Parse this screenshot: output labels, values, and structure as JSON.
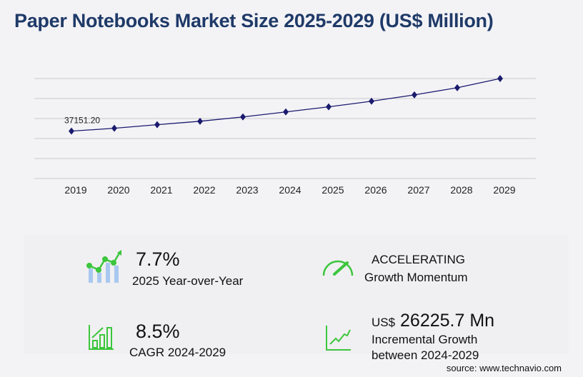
{
  "title": "Paper Notebooks Market Size 2025-2029 (US$ Million)",
  "chart_data": {
    "type": "line",
    "title": "Paper Notebooks Market Size 2025-2029 (US$ Million)",
    "categories": [
      "2019",
      "2020",
      "2021",
      "2022",
      "2023",
      "2024",
      "2025",
      "2026",
      "2027",
      "2028",
      "2029"
    ],
    "series": [
      {
        "values": [
          37151.2,
          39400,
          42200,
          44900,
          48300,
          52200,
          56200,
          60600,
          65600,
          71200,
          78400
        ],
        "color": "#1a1a6e"
      }
    ],
    "data_labels": [
      {
        "index": 0,
        "text": "37151.20"
      }
    ],
    "ylim": [
      0,
      78400
    ],
    "grid": true,
    "marker": "diamond"
  },
  "stats": {
    "yoy_value": "7.7%",
    "yoy_label": "2025 Year-over-Year",
    "momentum_value": "ACCELERATING",
    "momentum_label": "Growth Momentum",
    "cagr_value": "8.5%",
    "cagr_label": "CAGR 2024-2029",
    "incr_prefix": "US$",
    "incr_value": "26225.7 Mn",
    "incr_label1": "Incremental Growth",
    "incr_label2": "between 2024-2029"
  },
  "colors": {
    "accent": "#3cc63c",
    "line": "#1a1a6e",
    "title": "#1f3a68",
    "bars": "#a9c8f0"
  },
  "source": "source: www.technavio.com"
}
